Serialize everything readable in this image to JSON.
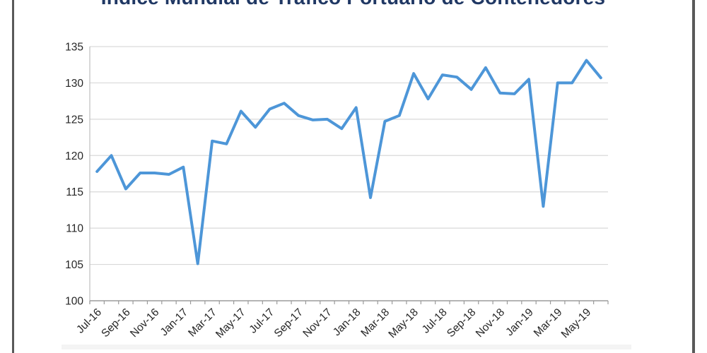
{
  "window": {
    "frame_color": "#595959",
    "background": "#ffffff"
  },
  "title": {
    "text": "Índice Mundial de Tráfico Portuario de Contenedores",
    "color": "#203864",
    "clipped_at_top": true
  },
  "chart_data": {
    "type": "line",
    "title": "Índice Mundial de Tráfico Portuario de Contenedores",
    "categories": [
      "Jul-16",
      "Aug-16",
      "Sep-16",
      "Oct-16",
      "Nov-16",
      "Dec-16",
      "Jan-17",
      "Feb-17",
      "Mar-17",
      "Apr-17",
      "May-17",
      "Jun-17",
      "Jul-17",
      "Aug-17",
      "Sep-17",
      "Oct-17",
      "Nov-17",
      "Dec-17",
      "Jan-18",
      "Feb-18",
      "Mar-18",
      "Apr-18",
      "May-18",
      "Jun-18",
      "Jul-18",
      "Aug-18",
      "Sep-18",
      "Oct-18",
      "Nov-18",
      "Dec-18",
      "Jan-19",
      "Feb-19",
      "Mar-19",
      "Apr-19",
      "May-19",
      "Jun-19"
    ],
    "values": [
      117.8,
      120.0,
      115.4,
      117.6,
      117.6,
      117.4,
      118.4,
      105.1,
      122.0,
      121.6,
      126.1,
      123.9,
      126.4,
      127.2,
      125.5,
      124.9,
      125.0,
      123.7,
      126.6,
      114.2,
      124.7,
      125.5,
      131.3,
      127.8,
      131.1,
      130.8,
      129.1,
      132.1,
      128.6,
      128.5,
      130.5,
      113.0,
      130.0,
      130.0,
      133.1,
      130.7
    ],
    "x_tick_labels_shown": [
      "Jul-16",
      "Sep-16",
      "Nov-16",
      "Jan-17",
      "Mar-17",
      "May-17",
      "Jul-17",
      "Sep-17",
      "Nov-17",
      "Jan-18",
      "Mar-18",
      "May-18",
      "Jul-18",
      "Sep-18",
      "Nov-18",
      "Jan-19",
      "Mar-19",
      "May-19"
    ],
    "x_label_every": 2,
    "y_ticks": [
      100,
      105,
      110,
      115,
      120,
      125,
      130,
      135
    ],
    "ylim": [
      100,
      135
    ],
    "xlabel": "",
    "ylabel": "",
    "grid": true,
    "legend": false,
    "line_color": "#4d96d8",
    "gridline_color": "#d9d9d9",
    "axis_color": "#9b9b9b",
    "yaxis_line_color": "#bfbfbf",
    "tick_label_color": "#262626"
  }
}
